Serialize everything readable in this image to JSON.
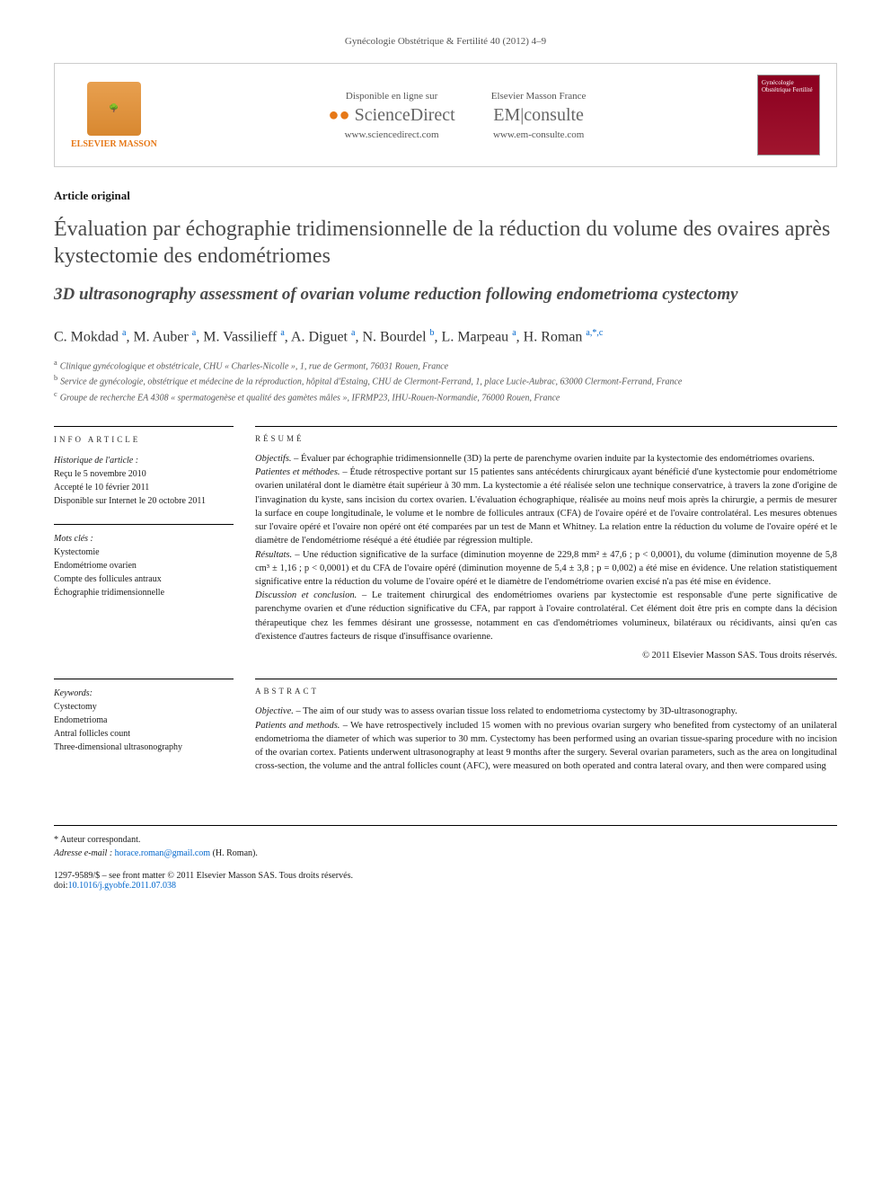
{
  "header": {
    "citation": "Gynécologie Obstétrique & Fertilité 40 (2012) 4–9"
  },
  "banner": {
    "publisher_label": "ELSEVIER MASSON",
    "sd_label": "Disponible en ligne sur",
    "sd_brand": "ScienceDirect",
    "sd_url": "www.sciencedirect.com",
    "em_label": "Elsevier Masson France",
    "em_brand_pre": "EM",
    "em_brand_post": "consulte",
    "em_url": "www.em-consulte.com",
    "cover_text": "Gynécologie Obstétrique Fertilité"
  },
  "article_type": "Article original",
  "title_fr": "Évaluation par échographie tridimensionnelle de la réduction du volume des ovaires après kystectomie des endométriomes",
  "title_en": "3D ultrasonography assessment of ovarian volume reduction following endometrioma cystectomy",
  "authors": [
    {
      "name": "C. Mokdad",
      "aff": "a"
    },
    {
      "name": "M. Auber",
      "aff": "a"
    },
    {
      "name": "M. Vassilieff",
      "aff": "a"
    },
    {
      "name": "A. Diguet",
      "aff": "a"
    },
    {
      "name": "N. Bourdel",
      "aff": "b"
    },
    {
      "name": "L. Marpeau",
      "aff": "a"
    },
    {
      "name": "H. Roman",
      "aff": "a,*,c"
    }
  ],
  "affiliations": {
    "a": "Clinique gynécologique et obstétricale, CHU « Charles-Nicolle », 1, rue de Germont, 76031 Rouen, France",
    "b": "Service de gynécologie, obstétrique et médecine de la réproduction, hôpital d'Estaing, CHU de Clermont-Ferrand, 1, place Lucie-Aubrac, 63000 Clermont-Ferrand, France",
    "c": "Groupe de recherche EA 4308 « spermatogenèse et qualité des gamètes mâles », IFRMP23, IHU-Rouen-Normandie, 76000 Rouen, France"
  },
  "info": {
    "head": "INFO ARTICLE",
    "history_label": "Historique de l'article :",
    "received": "Reçu le 5 novembre 2010",
    "accepted": "Accepté le 10 février 2011",
    "online": "Disponible sur Internet le 20 octobre 2011",
    "mots_label": "Mots clés :",
    "mots": [
      "Kystectomie",
      "Endométriome ovarien",
      "Compte des follicules antraux",
      "Échographie tridimensionnelle"
    ],
    "keywords_label": "Keywords:",
    "keywords": [
      "Cystectomy",
      "Endometrioma",
      "Antral follicles count",
      "Three-dimensional ultrasonography"
    ]
  },
  "resume": {
    "head": "RÉSUMÉ",
    "objectifs_label": "Objectifs. –",
    "objectifs": "Évaluer par échographie tridimensionnelle (3D) la perte de parenchyme ovarien induite par la kystectomie des endométriomes ovariens.",
    "patientes_label": "Patientes et méthodes. –",
    "patientes": "Étude rétrospective portant sur 15 patientes sans antécédents chirurgicaux ayant bénéficié d'une kystectomie pour endométriome ovarien unilatéral dont le diamètre était supérieur à 30 mm. La kystectomie a été réalisée selon une technique conservatrice, à travers la zone d'origine de l'invagination du kyste, sans incision du cortex ovarien. L'évaluation échographique, réalisée au moins neuf mois après la chirurgie, a permis de mesurer la surface en coupe longitudinale, le volume et le nombre de follicules antraux (CFA) de l'ovaire opéré et de l'ovaire controlatéral. Les mesures obtenues sur l'ovaire opéré et l'ovaire non opéré ont été comparées par un test de Mann et Whitney. La relation entre la réduction du volume de l'ovaire opéré et le diamètre de l'endométriome réséqué a été étudiée par régression multiple.",
    "resultats_label": "Résultats. –",
    "resultats": "Une réduction significative de la surface (diminution moyenne de 229,8 mm² ± 47,6 ; p < 0,0001), du volume (diminution moyenne de 5,8 cm³ ± 1,16 ; p < 0,0001) et du CFA de l'ovaire opéré (diminution moyenne de 5,4 ± 3,8 ; p = 0,002) a été mise en évidence. Une relation statistiquement significative entre la réduction du volume de l'ovaire opéré et le diamètre de l'endométriome ovarien excisé n'a pas été mise en évidence.",
    "discussion_label": "Discussion et conclusion. –",
    "discussion": "Le traitement chirurgical des endométriomes ovariens par kystectomie est responsable d'une perte significative de parenchyme ovarien et d'une réduction significative du CFA, par rapport à l'ovaire controlatéral. Cet élément doit être pris en compte dans la décision thérapeutique chez les femmes désirant une grossesse, notamment en cas d'endométriomes volumineux, bilatéraux ou récidivants, ainsi qu'en cas d'existence d'autres facteurs de risque d'insuffisance ovarienne.",
    "copyright": "© 2011 Elsevier Masson SAS. Tous droits réservés."
  },
  "abstract": {
    "head": "ABSTRACT",
    "objective_label": "Objective. –",
    "objective": "The aim of our study was to assess ovarian tissue loss related to endometrioma cystectomy by 3D-ultrasonography.",
    "patients_label": "Patients and methods. –",
    "patients": "We have retrospectively included 15 women with no previous ovarian surgery who benefited from cystectomy of an unilateral endometrioma the diameter of which was superior to 30 mm. Cystectomy has been performed using an ovarian tissue-sparing procedure with no incision of the ovarian cortex. Patients underwent ultrasonography at least 9 months after the surgery. Several ovarian parameters, such as the area on longitudinal cross-section, the volume and the antral follicles count (AFC), were measured on both operated and contra lateral ovary, and then were compared using"
  },
  "footer": {
    "corr_label": "* Auteur correspondant.",
    "email_label": "Adresse e-mail :",
    "email": "horace.roman@gmail.com",
    "email_suffix": "(H. Roman).",
    "copyright_line": "1297-9589/$ – see front matter © 2011 Elsevier Masson SAS. Tous droits réservés.",
    "doi_label": "doi:",
    "doi": "10.1016/j.gyobfe.2011.07.038"
  }
}
